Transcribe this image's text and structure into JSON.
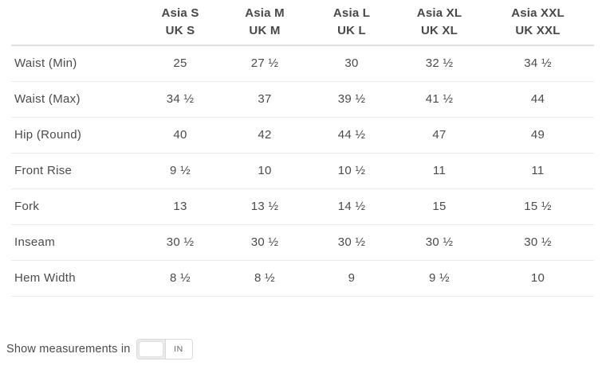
{
  "table": {
    "columns": [
      {
        "line1": "Asia S",
        "line2": "UK S"
      },
      {
        "line1": "Asia M",
        "line2": "UK M"
      },
      {
        "line1": "Asia L",
        "line2": "UK L"
      },
      {
        "line1": "Asia XL",
        "line2": "UK XL"
      },
      {
        "line1": "Asia XXL",
        "line2": "UK XXL"
      }
    ],
    "rows": [
      {
        "label": "Waist (Min)",
        "values": [
          "25",
          "27 ½",
          "30",
          "32 ½",
          "34 ½"
        ]
      },
      {
        "label": "Waist (Max)",
        "values": [
          "34 ½",
          "37",
          "39 ½",
          "41 ½",
          "44"
        ]
      },
      {
        "label": "Hip (Round)",
        "values": [
          "40",
          "42",
          "44 ½",
          "47",
          "49"
        ]
      },
      {
        "label": "Front Rise",
        "values": [
          "9 ½",
          "10",
          "10 ½",
          "11",
          "11"
        ]
      },
      {
        "label": "Fork",
        "values": [
          "13",
          "13 ½",
          "14 ½",
          "15",
          "15 ½"
        ]
      },
      {
        "label": "Inseam",
        "values": [
          "30 ½",
          "30 ½",
          "30 ½",
          "30 ½",
          "30 ½"
        ]
      },
      {
        "label": "Hem Width",
        "values": [
          "8 ½",
          "8 ½",
          "9",
          "9 ½",
          "10"
        ]
      }
    ]
  },
  "unit_toggle": {
    "label": "Show measurements in",
    "selected_unit": "IN"
  },
  "colors": {
    "body_text": "#4b4b4d",
    "header_text": "#48484b",
    "header_divider": "#dfdfdf",
    "row_divider": "#eaeaea",
    "toggle_border": "#d9d9d9",
    "toggle_track": "#ececec",
    "unit_text": "#5d6771"
  }
}
